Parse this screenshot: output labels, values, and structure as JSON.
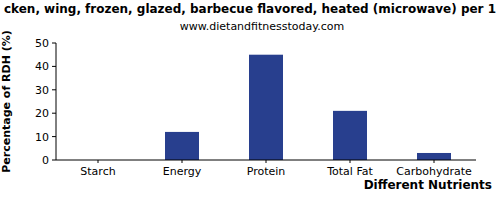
{
  "chart_data": {
    "type": "bar",
    "title": "cken, wing, frozen, glazed, barbecue flavored, heated (microwave) per 1",
    "subtitle": "www.dietandfitnesstoday.com",
    "x_label": "Different Nutrients",
    "y_label": "Percentage of RDH (%)",
    "categories": [
      "Starch",
      "Energy",
      "Protein",
      "Total Fat",
      "Carbohydrate"
    ],
    "values": [
      0,
      12,
      45,
      21,
      3
    ],
    "color": "#283f8e",
    "ylim": [
      0,
      50
    ],
    "yticks": [
      0,
      10,
      20,
      30,
      40,
      50
    ],
    "grid": false
  }
}
